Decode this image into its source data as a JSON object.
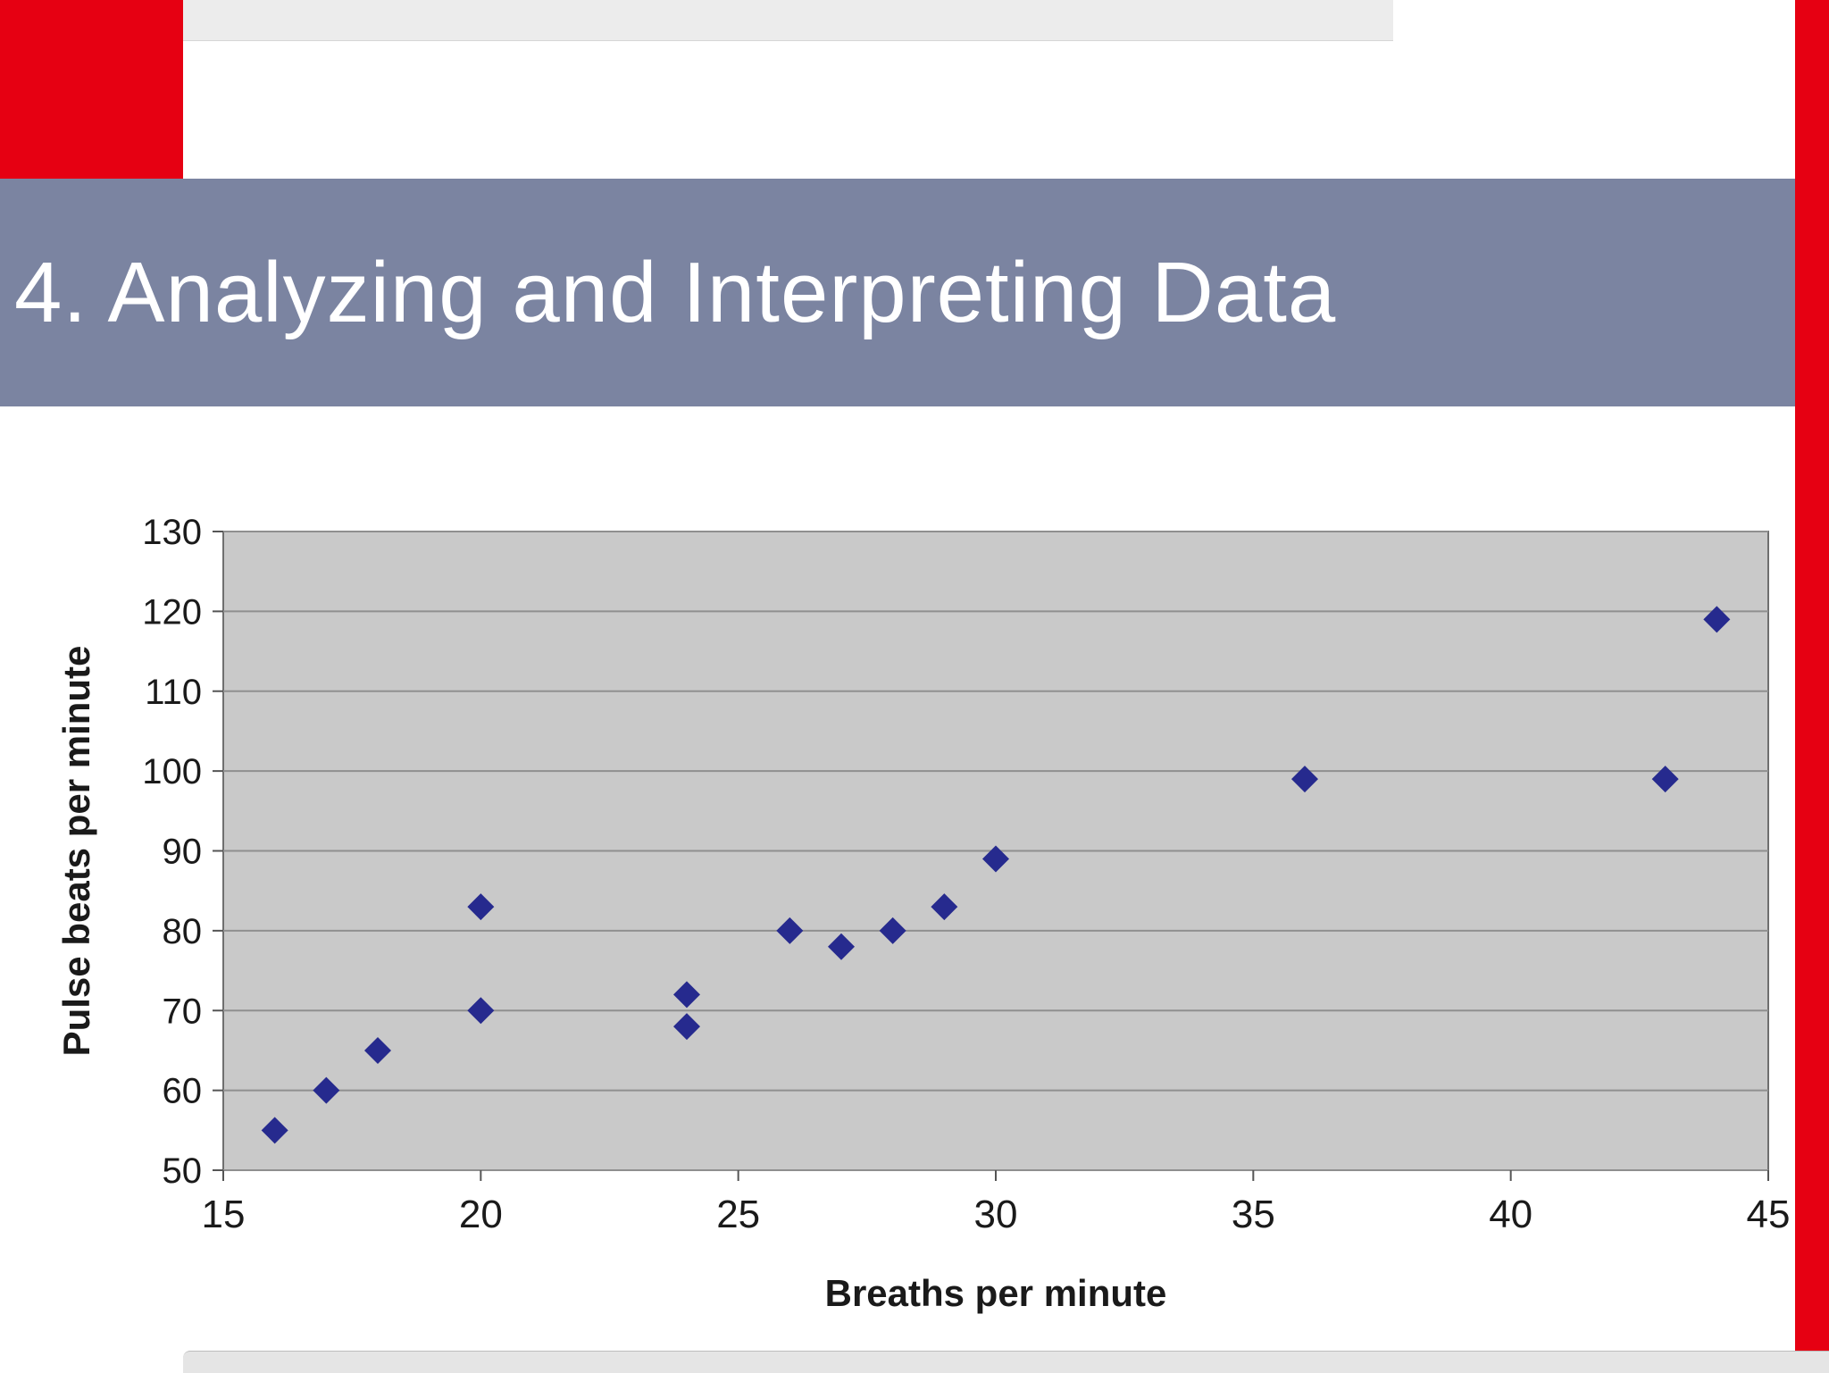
{
  "slide": {
    "title": "4. Analyzing and Interpreting Data"
  },
  "colors": {
    "accent_red": "#e60012",
    "header_band": "#7b84a1",
    "title_text": "#ffffff",
    "plot_background": "#c9c9c9",
    "plot_border": "#6f6f6f",
    "gridline": "#8f8f8f",
    "tick": "#555555",
    "point": "#262a8e"
  },
  "chart_data": {
    "type": "scatter",
    "title": "",
    "xlabel": "Breaths per minute",
    "ylabel": "Pulse beats per minute",
    "xlim": [
      15,
      45
    ],
    "ylim": [
      50,
      130
    ],
    "xtick_step": 5,
    "ytick_step": 10,
    "grid": "horizontal",
    "legend": "none",
    "points": [
      {
        "x": 16,
        "y": 55
      },
      {
        "x": 17,
        "y": 60
      },
      {
        "x": 18,
        "y": 65
      },
      {
        "x": 20,
        "y": 70
      },
      {
        "x": 20,
        "y": 83
      },
      {
        "x": 24,
        "y": 68
      },
      {
        "x": 24,
        "y": 72
      },
      {
        "x": 26,
        "y": 80
      },
      {
        "x": 27,
        "y": 78
      },
      {
        "x": 28,
        "y": 80
      },
      {
        "x": 29,
        "y": 83
      },
      {
        "x": 30,
        "y": 89
      },
      {
        "x": 36,
        "y": 99
      },
      {
        "x": 43,
        "y": 99
      },
      {
        "x": 44,
        "y": 119
      }
    ]
  }
}
